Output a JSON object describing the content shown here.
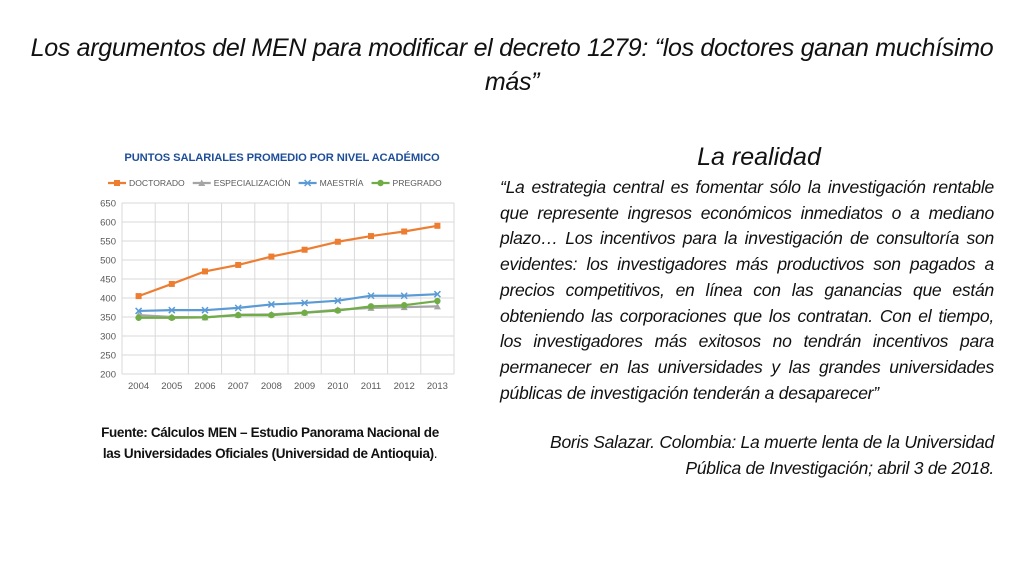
{
  "slide": {
    "title": "Los argumentos del MEN para modificar el decreto 1279: “los doctores ganan muchísimo más”"
  },
  "chart_data": {
    "type": "line",
    "title": "PUNTOS SALARIALES PROMEDIO POR NIVEL ACADÉMICO",
    "categories": [
      "2004",
      "2005",
      "2006",
      "2007",
      "2008",
      "2009",
      "2010",
      "2011",
      "2012",
      "2013"
    ],
    "ylim": [
      200,
      650
    ],
    "yticks": [
      "650",
      "600",
      "550",
      "500",
      "450",
      "400",
      "350",
      "300",
      "250",
      "200"
    ],
    "grid": true,
    "legend_position": "top",
    "series": [
      {
        "name": "DOCTORADO",
        "color": "#ed7d31",
        "marker": "square",
        "values": [
          405,
          437,
          470,
          487,
          509,
          527,
          548,
          563,
          575,
          590
        ]
      },
      {
        "name": "ESPECIALIZACIÓN",
        "color": "#a5a5a5",
        "marker": "triangle",
        "values": [
          355,
          350,
          349,
          356,
          357,
          362,
          369,
          374,
          376,
          378
        ]
      },
      {
        "name": "MAESTRÍA",
        "color": "#5b9bd5",
        "marker": "cross",
        "values": [
          366,
          368,
          368,
          374,
          383,
          387,
          393,
          406,
          406,
          410
        ]
      },
      {
        "name": "PREGRADO",
        "color": "#70ad47",
        "marker": "circle",
        "values": [
          348,
          348,
          349,
          355,
          355,
          361,
          367,
          378,
          381,
          392
        ]
      }
    ],
    "colors": {
      "title": "#1f4e9a",
      "axis_text": "#595959",
      "grid": "#d9d9d9"
    }
  },
  "caption": {
    "text": "Fuente: Cálculos MEN – Estudio Panorama Nacional de las Universidades Oficiales (Universidad de Antioquia)",
    "end": "."
  },
  "reality": {
    "heading": "La realidad",
    "quote": "“La estrategia central es fomentar sólo la investigación rentable que represente ingresos económicos inmediatos o a mediano plazo… Los incentivos para la investigación de consultoría son evidentes: los investigadores más productivos son pagados a precios competitivos, en línea con las ganancias que están obteniendo las corporaciones que los contratan. Con el tiempo, los investigadores más exitosos no tendrán incentivos para permanecer en las universidades y las grandes universidades públicas de investigación tenderán a desaparecer”",
    "citation": "Boris Salazar. Colombia: La muerte lenta de la Universidad Pública de Investigación; abril 3 de 2018."
  }
}
